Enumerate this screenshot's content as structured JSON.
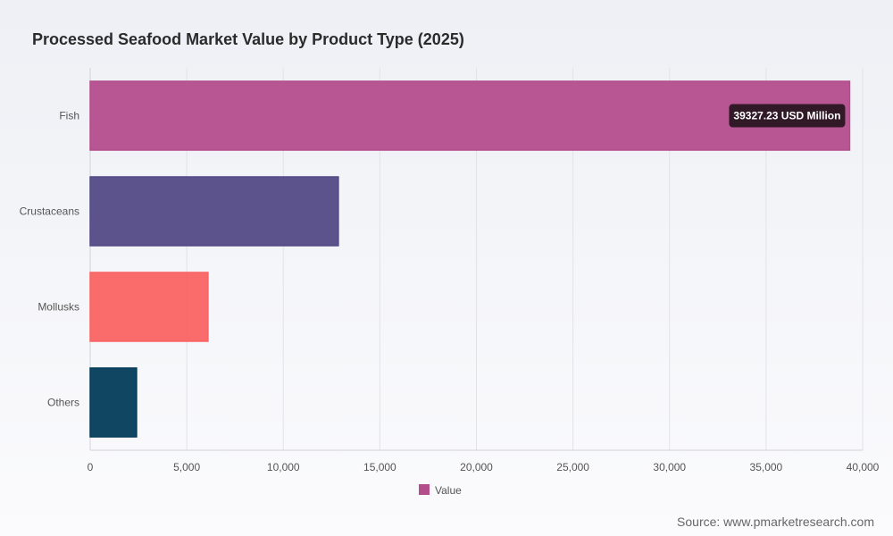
{
  "chart_data": {
    "type": "bar",
    "orientation": "horizontal",
    "title": "Processed Seafood Market Value by Product Type (2025)",
    "categories": [
      "Fish",
      "Crustaceans",
      "Mollusks",
      "Others"
    ],
    "series": [
      {
        "name": "Value",
        "values": [
          39327.23,
          12850,
          6100,
          2400
        ],
        "colors": [
          "#b34d8c",
          "#534a87",
          "#fa6363",
          "#033c5a"
        ]
      }
    ],
    "xlim": [
      0,
      40000
    ],
    "x_ticks": [
      "0",
      "5,000",
      "10,000",
      "15,000",
      "20,000",
      "25,000",
      "30,000",
      "35,000",
      "40,000"
    ],
    "x_tick_values": [
      0,
      5000,
      10000,
      15000,
      20000,
      25000,
      30000,
      35000,
      40000
    ],
    "xlabel": "",
    "ylabel": "",
    "grid": true,
    "legend": {
      "position": "bottom",
      "entries": [
        {
          "label": "Value",
          "color": "#b34d8c"
        }
      ]
    },
    "tooltip": {
      "category": "Fish",
      "text": "39327.23 USD Million"
    }
  },
  "source": "Source: www.pmarketresearch.com"
}
